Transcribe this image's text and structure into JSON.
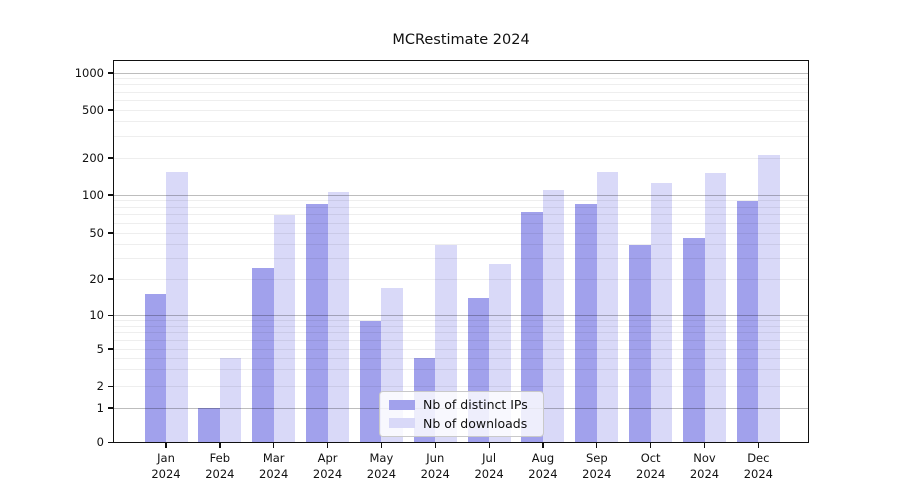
{
  "title": "MCRestimate 2024",
  "chart_data": {
    "type": "bar",
    "title": "MCRestimate 2024",
    "categories": [
      {
        "month": "Jan",
        "year": "2024"
      },
      {
        "month": "Feb",
        "year": "2024"
      },
      {
        "month": "Mar",
        "year": "2024"
      },
      {
        "month": "Apr",
        "year": "2024"
      },
      {
        "month": "May",
        "year": "2024"
      },
      {
        "month": "Jun",
        "year": "2024"
      },
      {
        "month": "Jul",
        "year": "2024"
      },
      {
        "month": "Aug",
        "year": "2024"
      },
      {
        "month": "Sep",
        "year": "2024"
      },
      {
        "month": "Oct",
        "year": "2024"
      },
      {
        "month": "Nov",
        "year": "2024"
      },
      {
        "month": "Dec",
        "year": "2024"
      }
    ],
    "series": [
      {
        "name": "Nb of distinct IPs",
        "color": "#a1a1ec",
        "values": [
          15,
          1,
          25,
          85,
          9,
          4,
          14,
          73,
          85,
          39,
          45,
          90
        ]
      },
      {
        "name": "Nb of downloads",
        "color": "#d9d9f8",
        "values": [
          155,
          4,
          70,
          105,
          17,
          39,
          27,
          110,
          155,
          125,
          150,
          210
        ]
      }
    ],
    "y_axis": {
      "ticks": [
        1000,
        500,
        200,
        100,
        50,
        20,
        10,
        5,
        2,
        1,
        0
      ],
      "scale": "log",
      "baseline": 0
    },
    "x_axis": {
      "label_format": "Month over Year"
    },
    "grid": {
      "horizontal": true,
      "minor": true
    },
    "legend_position": "lower center"
  }
}
